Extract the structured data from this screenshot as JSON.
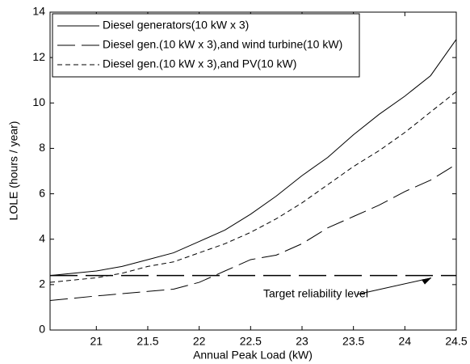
{
  "chart_data": {
    "type": "line",
    "xlabel": "Annual Peak Load (kW)",
    "ylabel": "LOLE (hours / year)",
    "x": [
      20.55,
      21,
      21.25,
      21.5,
      21.75,
      22,
      22.25,
      22.5,
      22.75,
      23,
      23.25,
      23.5,
      23.75,
      24,
      24.25,
      24.5
    ],
    "series": [
      {
        "name": "Diesel generators(10 kW x 3)",
        "color": "#000000",
        "style": "solid",
        "values": [
          2.4,
          2.6,
          2.8,
          3.1,
          3.4,
          3.9,
          4.4,
          5.1,
          5.9,
          6.8,
          7.6,
          8.6,
          9.5,
          10.3,
          11.2,
          12.8
        ]
      },
      {
        "name": "Diesel gen.(10 kW x 3),and wind turbine(10 kW)",
        "color": "#000000",
        "style": "longdash",
        "values": [
          1.3,
          1.5,
          1.6,
          1.7,
          1.8,
          2.1,
          2.6,
          3.1,
          3.3,
          3.8,
          4.5,
          5.0,
          5.5,
          6.1,
          6.6,
          7.3
        ]
      },
      {
        "name": "Diesel gen.(10 kW x 3),and PV(10 kW)",
        "color": "#000000",
        "style": "shortdash",
        "values": [
          2.1,
          2.3,
          2.5,
          2.8,
          3.0,
          3.4,
          3.8,
          4.3,
          4.9,
          5.6,
          6.4,
          7.2,
          7.9,
          8.7,
          9.6,
          10.5
        ]
      }
    ],
    "reference_line": {
      "value": 2.4,
      "label": "Target reliability level"
    },
    "xlim": [
      20.55,
      24.5
    ],
    "xticks": [
      21,
      21.5,
      22,
      22.5,
      23,
      23.5,
      24,
      24.5
    ],
    "ylim": [
      0,
      14
    ],
    "yticks": [
      0,
      2,
      4,
      6,
      8,
      10,
      12,
      14
    ],
    "legend": "upper left"
  }
}
